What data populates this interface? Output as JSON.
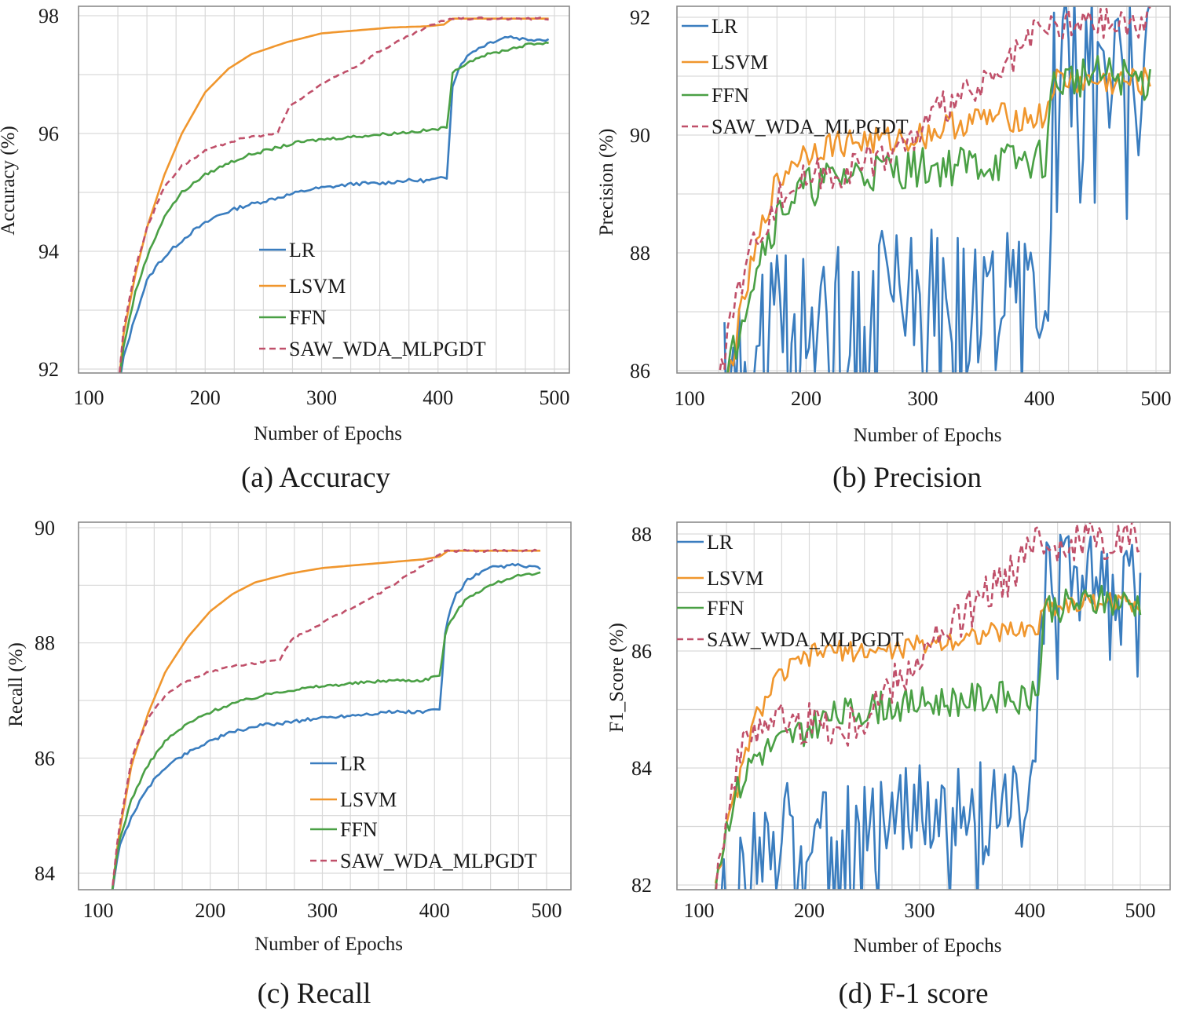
{
  "chart_data": [
    {
      "type": "line",
      "panel": "a",
      "caption": "(a) Accuracy",
      "xlabel": "Number of Epochs",
      "ylabel": "Accuracy (%)",
      "xlim": [
        100,
        500
      ],
      "ylim": [
        92,
        98
      ],
      "xticks": [
        "100",
        "200",
        "300",
        "400",
        "500"
      ],
      "yticks": [
        "92",
        "94",
        "96",
        "98"
      ],
      "legend_position": "center",
      "series": [
        {
          "name": "LR",
          "color": "#3a7dbf",
          "dash": false,
          "noise": 0.03,
          "x": [
            125,
            130,
            140,
            150,
            160,
            175,
            190,
            210,
            230,
            250,
            270,
            290,
            310,
            330,
            350,
            370,
            390,
            408,
            412,
            420,
            430,
            445,
            460,
            475,
            495
          ],
          "y": [
            91.6,
            92.2,
            92.9,
            93.5,
            93.8,
            94.1,
            94.35,
            94.6,
            94.75,
            94.85,
            94.95,
            95.05,
            95.1,
            95.15,
            95.15,
            95.2,
            95.2,
            95.25,
            96.8,
            97.2,
            97.4,
            97.55,
            97.65,
            97.6,
            97.6
          ]
        },
        {
          "name": "LSVM",
          "color": "#f0962d",
          "dash": false,
          "noise": 0.0,
          "x": [
            125,
            130,
            140,
            150,
            165,
            180,
            200,
            220,
            240,
            270,
            300,
            330,
            360,
            390,
            405,
            412,
            430,
            460,
            495
          ],
          "y": [
            91.6,
            92.6,
            93.6,
            94.4,
            95.3,
            96.0,
            96.7,
            97.1,
            97.35,
            97.55,
            97.7,
            97.75,
            97.8,
            97.82,
            97.85,
            97.95,
            97.95,
            97.95,
            97.95
          ]
        },
        {
          "name": "FFN",
          "color": "#4aa045",
          "dash": false,
          "noise": 0.025,
          "x": [
            125,
            130,
            140,
            150,
            165,
            180,
            200,
            220,
            240,
            260,
            280,
            300,
            330,
            360,
            390,
            408,
            412,
            420,
            435,
            455,
            475,
            495
          ],
          "y": [
            91.6,
            92.4,
            93.3,
            93.9,
            94.6,
            95.0,
            95.3,
            95.5,
            95.65,
            95.75,
            95.85,
            95.9,
            95.95,
            96.0,
            96.05,
            96.1,
            97.0,
            97.15,
            97.3,
            97.4,
            97.5,
            97.55
          ]
        },
        {
          "name": "SAW_WDA_MLPGDT",
          "color": "#c0506a",
          "dash": true,
          "noise": 0.02,
          "x": [
            125,
            130,
            140,
            150,
            165,
            180,
            200,
            220,
            240,
            262,
            272,
            290,
            310,
            330,
            350,
            370,
            390,
            410,
            430,
            460,
            495
          ],
          "y": [
            91.6,
            92.7,
            93.7,
            94.4,
            95.1,
            95.45,
            95.7,
            95.85,
            95.95,
            96.0,
            96.45,
            96.7,
            96.95,
            97.15,
            97.4,
            97.6,
            97.8,
            97.95,
            97.95,
            97.95,
            97.95
          ]
        }
      ]
    },
    {
      "type": "line",
      "panel": "b",
      "caption": "(b) Precision",
      "xlabel": "Number of Epochs",
      "ylabel": "Precision (%)",
      "xlim": [
        100,
        500
      ],
      "ylim": [
        86,
        92
      ],
      "xticks": [
        "100",
        "200",
        "300",
        "400",
        "500"
      ],
      "yticks": [
        "86",
        "88",
        "90",
        "92"
      ],
      "legend_position": "top-left",
      "series": [
        {
          "name": "LR",
          "color": "#3a7dbf",
          "dash": false,
          "noise": 1.1,
          "x": [
            130,
            160,
            200,
            250,
            300,
            350,
            400,
            405,
            412,
            420,
            440,
            460,
            480,
            495
          ],
          "y": [
            85.8,
            86.8,
            87.2,
            87.4,
            87.4,
            87.4,
            87.4,
            88.0,
            91.1,
            91.3,
            91.4,
            91.4,
            91.3,
            91.2
          ]
        },
        {
          "name": "LSVM",
          "color": "#f0962d",
          "dash": false,
          "noise": 0.25,
          "x": [
            130,
            150,
            170,
            190,
            210,
            240,
            270,
            300,
            330,
            360,
            390,
            405,
            412,
            440,
            470,
            495
          ],
          "y": [
            85.6,
            87.5,
            89.0,
            89.6,
            89.8,
            89.9,
            89.9,
            90.0,
            90.2,
            90.3,
            90.3,
            90.3,
            90.9,
            90.9,
            90.9,
            90.9
          ]
        },
        {
          "name": "FFN",
          "color": "#4aa045",
          "dash": false,
          "noise": 0.35,
          "x": [
            130,
            145,
            160,
            180,
            200,
            230,
            260,
            300,
            340,
            380,
            405,
            412,
            440,
            470,
            495
          ],
          "y": [
            85.6,
            87.0,
            88.0,
            88.8,
            89.1,
            89.3,
            89.4,
            89.45,
            89.5,
            89.55,
            89.6,
            90.9,
            91.0,
            91.0,
            90.9
          ]
        },
        {
          "name": "SAW_WDA_MLPGDT",
          "color": "#c0506a",
          "dash": true,
          "noise": 0.3,
          "x": [
            125,
            140,
            160,
            180,
            200,
            230,
            260,
            290,
            320,
            340,
            360,
            375,
            390,
            405,
            420,
            450,
            480,
            495
          ],
          "y": [
            85.8,
            87.3,
            88.4,
            89.0,
            89.3,
            89.4,
            89.6,
            89.9,
            90.5,
            90.7,
            90.9,
            91.2,
            91.6,
            91.8,
            91.85,
            91.9,
            91.9,
            91.9
          ]
        }
      ]
    },
    {
      "type": "line",
      "panel": "c",
      "caption": "(c) Recall",
      "xlabel": "Number of Epochs",
      "ylabel": "Recall (%)",
      "xlim": [
        100,
        500
      ],
      "ylim": [
        84,
        90
      ],
      "xticks": [
        "100",
        "200",
        "300",
        "400",
        "500"
      ],
      "yticks": [
        "84",
        "86",
        "88",
        "90"
      ],
      "legend_position": "bottom-right",
      "series": [
        {
          "name": "LR",
          "color": "#3a7dbf",
          "dash": false,
          "noise": 0.03,
          "x": [
            112,
            118,
            130,
            145,
            160,
            180,
            200,
            220,
            240,
            260,
            280,
            300,
            330,
            360,
            390,
            405,
            410,
            418,
            430,
            450,
            470,
            495
          ],
          "y": [
            83.6,
            84.4,
            85.0,
            85.5,
            85.85,
            86.1,
            86.3,
            86.45,
            86.55,
            86.6,
            86.65,
            86.7,
            86.75,
            86.8,
            86.8,
            86.85,
            88.3,
            88.8,
            89.1,
            89.3,
            89.35,
            89.3
          ]
        },
        {
          "name": "LSVM",
          "color": "#f0962d",
          "dash": false,
          "noise": 0.0,
          "x": [
            112,
            118,
            130,
            145,
            160,
            180,
            200,
            220,
            240,
            270,
            300,
            330,
            360,
            390,
            405,
            412,
            440,
            470,
            495
          ],
          "y": [
            83.6,
            84.6,
            85.9,
            86.8,
            87.5,
            88.1,
            88.55,
            88.85,
            89.05,
            89.2,
            89.3,
            89.35,
            89.4,
            89.45,
            89.5,
            89.6,
            89.6,
            89.6,
            89.6
          ]
        },
        {
          "name": "FFN",
          "color": "#4aa045",
          "dash": false,
          "noise": 0.025,
          "x": [
            112,
            118,
            130,
            145,
            160,
            180,
            200,
            220,
            240,
            260,
            280,
            300,
            330,
            360,
            390,
            405,
            410,
            418,
            430,
            450,
            470,
            495
          ],
          "y": [
            83.6,
            84.5,
            85.3,
            85.9,
            86.3,
            86.6,
            86.8,
            86.95,
            87.05,
            87.15,
            87.2,
            87.25,
            87.3,
            87.35,
            87.35,
            87.45,
            88.2,
            88.5,
            88.8,
            89.0,
            89.15,
            89.2
          ]
        },
        {
          "name": "SAW_WDA_MLPGDT",
          "color": "#c0506a",
          "dash": true,
          "noise": 0.02,
          "x": [
            112,
            118,
            130,
            145,
            160,
            180,
            200,
            220,
            240,
            262,
            272,
            290,
            310,
            330,
            350,
            370,
            390,
            410,
            440,
            470,
            495
          ],
          "y": [
            83.6,
            84.7,
            86.0,
            86.7,
            87.1,
            87.35,
            87.5,
            87.6,
            87.65,
            87.7,
            88.05,
            88.25,
            88.45,
            88.65,
            88.85,
            89.1,
            89.35,
            89.6,
            89.6,
            89.6,
            89.6
          ]
        }
      ]
    },
    {
      "type": "line",
      "panel": "d",
      "caption": "(d) F-1 score",
      "xlabel": "Number of Epochs",
      "ylabel": "F1_Score (%)",
      "xlim": [
        100,
        500
      ],
      "ylim": [
        82,
        88
      ],
      "xticks": [
        "100",
        "200",
        "300",
        "400",
        "500"
      ],
      "yticks": [
        "82",
        "84",
        "86",
        "88"
      ],
      "legend_position": "top-left",
      "series": [
        {
          "name": "LR",
          "color": "#3a7dbf",
          "dash": false,
          "noise": 0.75,
          "x": [
            120,
            150,
            180,
            220,
            260,
            300,
            340,
            380,
            405,
            412,
            420,
            440,
            460,
            480,
            500
          ],
          "y": [
            81.8,
            82.8,
            83.0,
            83.2,
            83.3,
            83.3,
            83.4,
            83.5,
            83.9,
            87.1,
            87.3,
            87.35,
            87.4,
            87.3,
            87.2
          ]
        },
        {
          "name": "LSVM",
          "color": "#f0962d",
          "dash": false,
          "noise": 0.18,
          "x": [
            115,
            130,
            150,
            170,
            190,
            210,
            240,
            270,
            300,
            330,
            360,
            390,
            408,
            412,
            440,
            470,
            500
          ],
          "y": [
            82.1,
            83.3,
            84.8,
            85.5,
            85.8,
            86.0,
            86.0,
            86.0,
            86.1,
            86.2,
            86.3,
            86.35,
            86.4,
            86.75,
            86.8,
            86.85,
            86.8
          ]
        },
        {
          "name": "FFN",
          "color": "#4aa045",
          "dash": false,
          "noise": 0.28,
          "x": [
            115,
            130,
            150,
            170,
            190,
            210,
            240,
            270,
            300,
            330,
            360,
            390,
            408,
            412,
            440,
            470,
            500
          ],
          "y": [
            82.1,
            83.4,
            84.2,
            84.4,
            84.6,
            84.8,
            84.95,
            85.05,
            85.1,
            85.15,
            85.2,
            85.2,
            85.2,
            86.75,
            86.8,
            86.85,
            86.8
          ]
        },
        {
          "name": "SAW_WDA_MLPGDT",
          "color": "#c0506a",
          "dash": true,
          "noise": 0.38,
          "x": [
            115,
            130,
            150,
            170,
            190,
            210,
            230,
            250,
            270,
            300,
            320,
            340,
            360,
            380,
            400,
            420,
            450,
            480,
            500
          ],
          "y": [
            82.1,
            83.8,
            84.8,
            84.9,
            84.7,
            84.8,
            84.6,
            84.9,
            85.3,
            85.9,
            86.2,
            86.6,
            86.9,
            87.3,
            87.7,
            87.85,
            87.9,
            87.95,
            87.95
          ]
        }
      ]
    }
  ]
}
